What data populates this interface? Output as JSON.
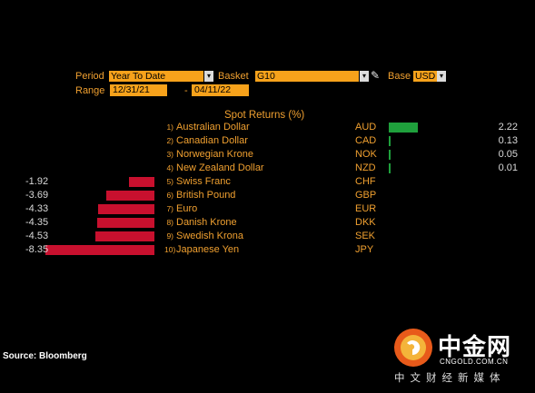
{
  "controls": {
    "period_label": "Period",
    "period_value": "Year To Date",
    "basket_label": "Basket",
    "basket_value": "G10",
    "base_label": "Base",
    "base_value": "USD",
    "range_label": "Range",
    "range_start": "12/31/21",
    "range_separator": "-",
    "range_end": "04/11/22"
  },
  "chart_data": {
    "type": "bar",
    "title": "Spot Returns (%)",
    "rows": [
      {
        "rank": "1)",
        "currency": "Australian Dollar",
        "code": "AUD",
        "value": 2.22,
        "label": "2.22"
      },
      {
        "rank": "2)",
        "currency": "Canadian Dollar",
        "code": "CAD",
        "value": 0.13,
        "label": "0.13"
      },
      {
        "rank": "3)",
        "currency": "Norwegian Krone",
        "code": "NOK",
        "value": 0.05,
        "label": "0.05"
      },
      {
        "rank": "4)",
        "currency": "New Zealand Dollar",
        "code": "NZD",
        "value": 0.01,
        "label": "0.01"
      },
      {
        "rank": "5)",
        "currency": "Swiss Franc",
        "code": "CHF",
        "value": -1.92,
        "label": "-1.92"
      },
      {
        "rank": "6)",
        "currency": "British Pound",
        "code": "GBP",
        "value": -3.69,
        "label": "-3.69"
      },
      {
        "rank": "7)",
        "currency": "Euro",
        "code": "EUR",
        "value": -4.33,
        "label": "-4.33"
      },
      {
        "rank": "8)",
        "currency": "Danish Krone",
        "code": "DKK",
        "value": -4.35,
        "label": "-4.35"
      },
      {
        "rank": "9)",
        "currency": "Swedish Krona",
        "code": "SEK",
        "value": -4.53,
        "label": "-4.53"
      },
      {
        "rank": "10)",
        "currency": "Japanese Yen",
        "code": "JPY",
        "value": -8.35,
        "label": "-8.35"
      }
    ],
    "colors": {
      "positive": "#1fa03c",
      "negative": "#c8102e"
    }
  },
  "footer": {
    "source": "Source: Bloomberg"
  },
  "watermark": {
    "brand": "中金网",
    "url": "CNGOLD.COM.CN",
    "tagline": "中文财经新媒体"
  }
}
